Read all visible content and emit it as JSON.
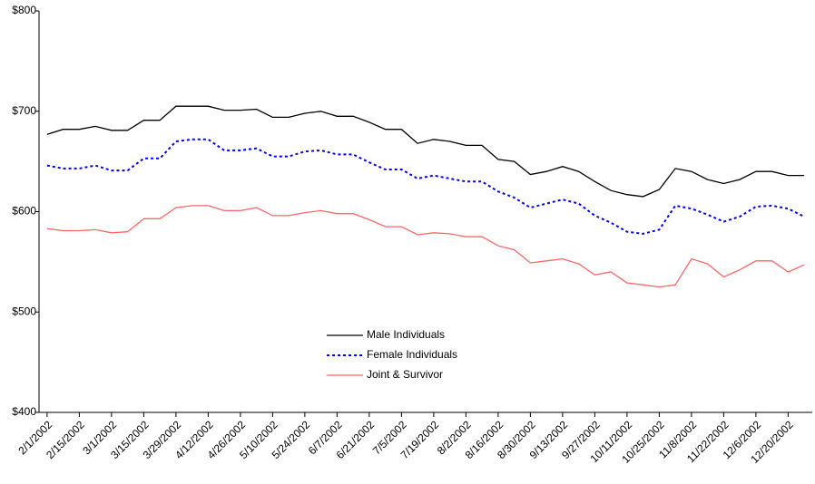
{
  "chart_data": {
    "type": "line",
    "categories": [
      "2/1/2002",
      null,
      "2/15/2002",
      null,
      "3/1/2002",
      null,
      "3/15/2002",
      null,
      "3/29/2002",
      null,
      "4/12/2002",
      null,
      "4/26/2002",
      null,
      "5/10/2002",
      null,
      "5/24/2002",
      null,
      "6/7/2002",
      null,
      "6/21/2002",
      null,
      "7/5/2002",
      null,
      "7/19/2002",
      null,
      "8/2/2002",
      null,
      "8/16/2002",
      null,
      "8/30/2002",
      null,
      "9/13/2002",
      null,
      "9/27/2002",
      null,
      "10/11/2002",
      null,
      "10/25/2002",
      null,
      "11/8/2002",
      null,
      "11/22/2002",
      null,
      "12/6/2002",
      null,
      "12/20/2002",
      null
    ],
    "series": [
      {
        "name": "Male Individuals",
        "color": "#000000",
        "dash": "solid",
        "values": [
          677,
          682,
          682,
          685,
          681,
          681,
          691,
          691,
          705,
          705,
          705,
          701,
          701,
          702,
          694,
          694,
          698,
          700,
          695,
          695,
          689,
          682,
          682,
          668,
          672,
          670,
          666,
          666,
          652,
          650,
          637,
          640,
          645,
          640,
          630,
          621,
          617,
          615,
          622,
          643,
          640,
          632,
          628,
          632,
          640,
          640,
          636,
          636
        ]
      },
      {
        "name": "Female Individuals",
        "color": "#0000ff",
        "dash": "dotted",
        "values": [
          646,
          643,
          643,
          646,
          641,
          641,
          653,
          653,
          670,
          672,
          672,
          661,
          661,
          663,
          655,
          655,
          660,
          661,
          657,
          657,
          649,
          642,
          642,
          633,
          636,
          633,
          630,
          630,
          620,
          614,
          604,
          608,
          612,
          608,
          596,
          589,
          580,
          578,
          582,
          606,
          603,
          597,
          590,
          595,
          605,
          606,
          603,
          595
        ]
      },
      {
        "name": "Joint & Survivor",
        "color": "#ff6666",
        "dash": "solid",
        "values": [
          583,
          581,
          581,
          582,
          579,
          580,
          593,
          593,
          604,
          606,
          606,
          601,
          601,
          604,
          596,
          596,
          599,
          601,
          598,
          598,
          592,
          585,
          585,
          577,
          579,
          578,
          575,
          575,
          566,
          562,
          549,
          551,
          553,
          548,
          537,
          540,
          529,
          527,
          525,
          527,
          553,
          548,
          535,
          542,
          551,
          551,
          540,
          547
        ]
      }
    ],
    "ylim": [
      400,
      800
    ],
    "yticks": [
      {
        "value": 400,
        "label": "$400"
      },
      {
        "value": 500,
        "label": "$500"
      },
      {
        "value": 600,
        "label": "$600"
      },
      {
        "value": 700,
        "label": "$700"
      },
      {
        "value": 800,
        "label": "$800"
      }
    ],
    "grid": false,
    "legend": "center"
  }
}
